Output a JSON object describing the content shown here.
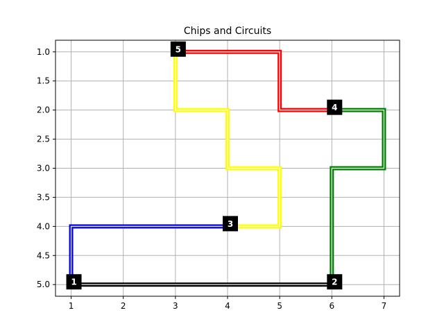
{
  "chart_data": {
    "type": "line",
    "title": "Chips and Circuits",
    "xlabel": "",
    "ylabel": "",
    "xlim": [
      0.7,
      7.3
    ],
    "ylim": [
      5.2,
      0.8
    ],
    "y_inverted": true,
    "grid": true,
    "x_ticks": [
      1,
      2,
      3,
      4,
      5,
      6,
      7
    ],
    "x_tick_labels": [
      "1",
      "2",
      "3",
      "4",
      "5",
      "6",
      "7"
    ],
    "y_ticks": [
      1.0,
      1.5,
      2.0,
      2.5,
      3.0,
      3.5,
      4.0,
      4.5,
      5.0
    ],
    "y_tick_labels": [
      "1.0",
      "1.5",
      "2.0",
      "2.5",
      "3.0",
      "3.5",
      "4.0",
      "4.5",
      "5.0"
    ],
    "chips": [
      {
        "label": "1",
        "x": 1,
        "y": 5
      },
      {
        "label": "2",
        "x": 6,
        "y": 5
      },
      {
        "label": "3",
        "x": 4,
        "y": 4
      },
      {
        "label": "4",
        "x": 6,
        "y": 2
      },
      {
        "label": "5",
        "x": 3,
        "y": 1
      }
    ],
    "series": [
      {
        "color": "#000000",
        "points": [
          [
            1,
            5
          ],
          [
            6,
            5
          ]
        ]
      },
      {
        "color": "#0000ff",
        "points": [
          [
            1,
            5
          ],
          [
            1,
            4
          ],
          [
            4,
            4
          ]
        ]
      },
      {
        "color": "#ffff00",
        "points": [
          [
            4,
            4
          ],
          [
            5,
            4
          ],
          [
            5,
            3
          ],
          [
            4,
            3
          ],
          [
            4,
            2
          ],
          [
            3,
            2
          ],
          [
            3,
            1
          ]
        ]
      },
      {
        "color": "#ff0000",
        "points": [
          [
            3,
            1
          ],
          [
            5,
            1
          ],
          [
            5,
            2
          ],
          [
            6,
            2
          ]
        ]
      },
      {
        "color": "#008000",
        "points": [
          [
            6,
            2
          ],
          [
            7,
            2
          ],
          [
            7,
            3
          ],
          [
            6,
            3
          ],
          [
            6,
            5
          ]
        ]
      }
    ]
  }
}
